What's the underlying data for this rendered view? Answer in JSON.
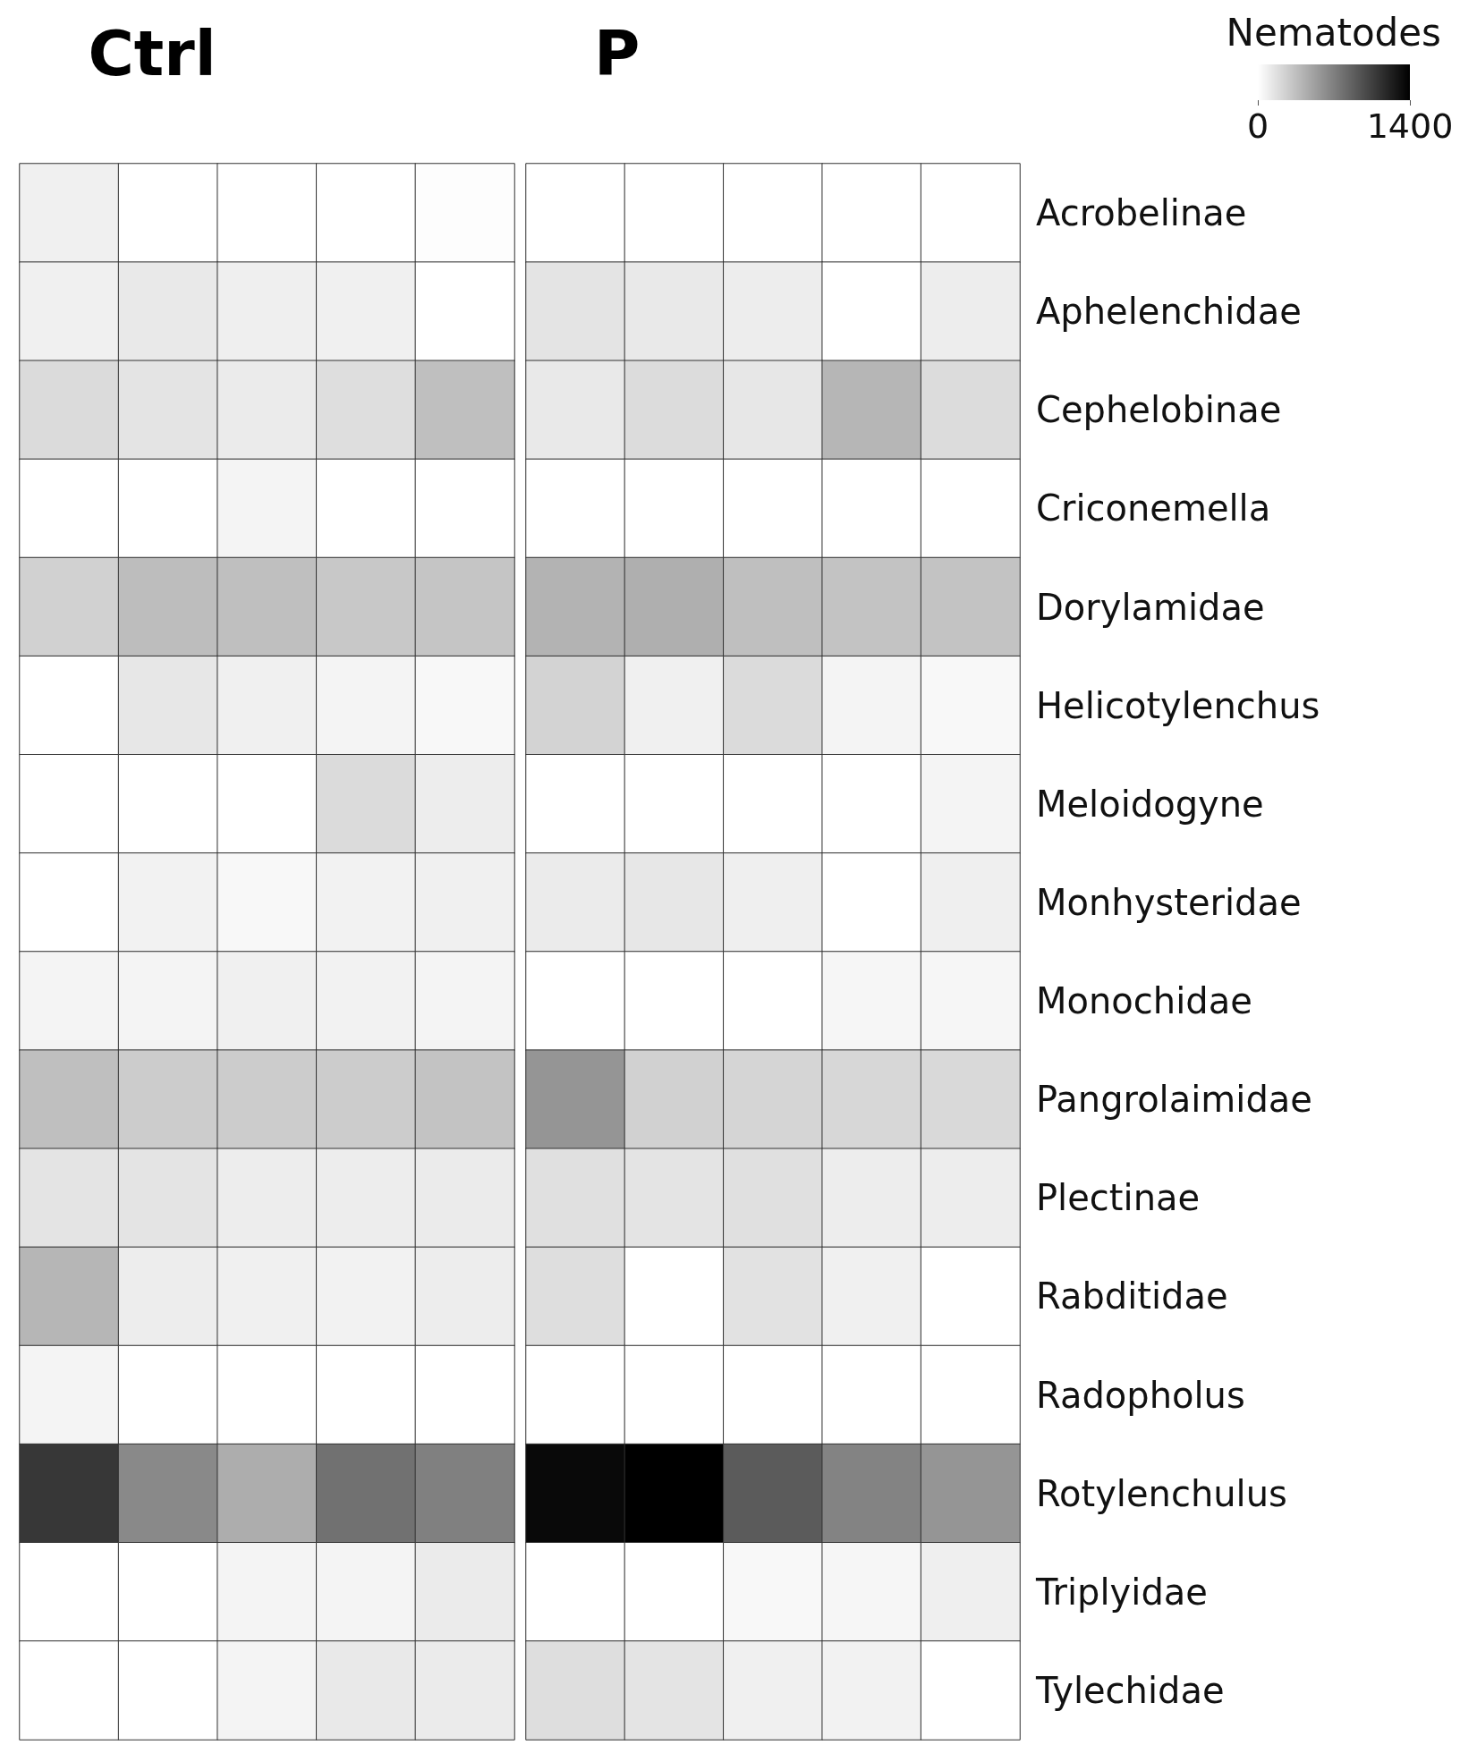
{
  "chart_data": {
    "type": "heatmap",
    "annotations": [
      "Ctrl",
      "P"
    ],
    "categories": [
      null,
      null,
      null,
      null,
      null,
      null,
      null,
      null,
      null,
      null
    ],
    "y_categories": [
      "Acrobelinae",
      "Aphelenchidae",
      "Cephelobinae",
      "Criconemella",
      "Dorylamidae",
      "Helicotylenchus",
      "Meloidogyne",
      "Monhysteridae",
      "Monochidae",
      "Pangrolaimidae",
      "Plectinae",
      "Rabditidae",
      "Radopholus",
      "Rotylenchulus",
      "Triplyidae",
      "Tylechidae"
    ],
    "clabel": "Nematodes",
    "clim": [
      0,
      1400
    ],
    "cticks": [
      0,
      1400
    ],
    "cells": [
      [
        80,
        0,
        0,
        0,
        10,
        0,
        0,
        0,
        0,
        0
      ],
      [
        80,
        120,
        90,
        80,
        0,
        150,
        120,
        100,
        0,
        100
      ],
      [
        200,
        150,
        110,
        180,
        350,
        120,
        190,
        130,
        400,
        190
      ],
      [
        0,
        0,
        60,
        0,
        0,
        0,
        0,
        0,
        0,
        0
      ],
      [
        250,
        360,
        350,
        300,
        320,
        420,
        440,
        350,
        330,
        330
      ],
      [
        0,
        130,
        80,
        60,
        40,
        240,
        80,
        200,
        60,
        40
      ],
      [
        0,
        0,
        0,
        200,
        100,
        0,
        0,
        0,
        0,
        60
      ],
      [
        0,
        70,
        40,
        70,
        80,
        110,
        130,
        90,
        0,
        90
      ],
      [
        60,
        60,
        80,
        70,
        60,
        0,
        0,
        0,
        50,
        50
      ],
      [
        350,
        280,
        280,
        280,
        330,
        580,
        250,
        230,
        220,
        210
      ],
      [
        150,
        150,
        100,
        100,
        110,
        170,
        150,
        170,
        100,
        100
      ],
      [
        400,
        100,
        80,
        70,
        100,
        180,
        0,
        160,
        80,
        0
      ],
      [
        60,
        0,
        0,
        0,
        0,
        0,
        0,
        0,
        0,
        0
      ],
      [
        1100,
        650,
        450,
        780,
        700,
        1350,
        1400,
        900,
        680,
        580
      ],
      [
        0,
        0,
        60,
        60,
        110,
        0,
        0,
        40,
        50,
        90
      ],
      [
        0,
        0,
        60,
        120,
        110,
        180,
        150,
        80,
        70,
        0
      ]
    ]
  }
}
